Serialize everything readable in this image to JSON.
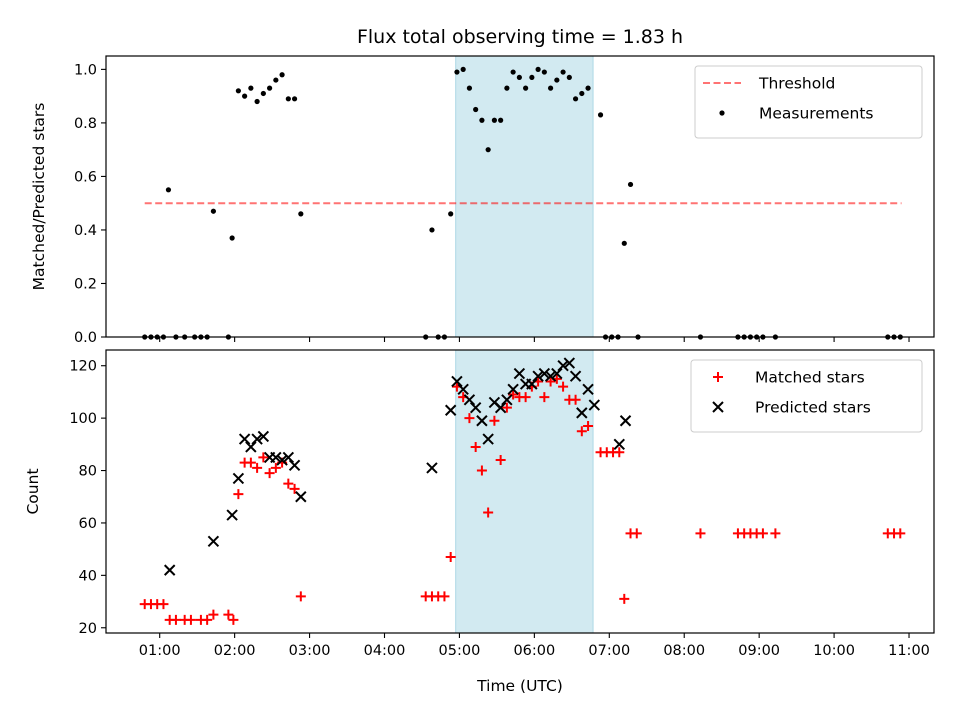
{
  "chart_data": [
    {
      "type": "scatter",
      "title": "Flux total observing time = 1.83 h",
      "xlabel": "",
      "ylabel": "Matched/Predicted stars",
      "xlim": [
        "00:17",
        "11:20"
      ],
      "ylim": [
        0,
        1.05
      ],
      "yticks": [
        "0.0",
        "0.2",
        "0.4",
        "0.6",
        "0.8",
        "1.0"
      ],
      "xticks": [
        "01:00",
        "02:00",
        "03:00",
        "04:00",
        "05:00",
        "06:00",
        "07:00",
        "08:00",
        "09:00",
        "10:00",
        "11:00"
      ],
      "xtick_labels_visible": false,
      "highlight_span": [
        "04:57",
        "06:47"
      ],
      "highlight_color": "#add8e6",
      "legend_position": "upper right",
      "threshold": {
        "name": "Threshold",
        "value": 0.5,
        "x_range": [
          "00:48",
          "10:54"
        ],
        "color": "#ff0000",
        "style": "dashed"
      },
      "series": [
        {
          "name": "Measurements",
          "marker": "dot",
          "color": "#000000",
          "points": [
            [
              "00:48",
              0
            ],
            [
              "00:53",
              0
            ],
            [
              "00:58",
              0
            ],
            [
              "01:03",
              0
            ],
            [
              "01:07",
              0.55
            ],
            [
              "01:13",
              0
            ],
            [
              "01:20",
              0
            ],
            [
              "01:28",
              0
            ],
            [
              "01:33",
              0
            ],
            [
              "01:38",
              0
            ],
            [
              "01:43",
              0.47
            ],
            [
              "01:55",
              0
            ],
            [
              "01:58",
              0.37
            ],
            [
              "02:03",
              0.92
            ],
            [
              "02:08",
              0.9
            ],
            [
              "02:13",
              0.93
            ],
            [
              "02:18",
              0.88
            ],
            [
              "02:23",
              0.91
            ],
            [
              "02:28",
              0.93
            ],
            [
              "02:33",
              0.96
            ],
            [
              "02:38",
              0.98
            ],
            [
              "02:43",
              0.89
            ],
            [
              "02:48",
              0.89
            ],
            [
              "02:53",
              0.46
            ],
            [
              "04:33",
              0
            ],
            [
              "04:38",
              0.4
            ],
            [
              "04:43",
              0
            ],
            [
              "04:48",
              0
            ],
            [
              "04:53",
              0.46
            ],
            [
              "04:58",
              0.99
            ],
            [
              "05:03",
              1.0
            ],
            [
              "05:08",
              0.93
            ],
            [
              "05:13",
              0.85
            ],
            [
              "05:18",
              0.81
            ],
            [
              "05:23",
              0.7
            ],
            [
              "05:28",
              0.81
            ],
            [
              "05:33",
              0.81
            ],
            [
              "05:38",
              0.93
            ],
            [
              "05:43",
              0.99
            ],
            [
              "05:48",
              0.97
            ],
            [
              "05:53",
              0.93
            ],
            [
              "05:58",
              0.97
            ],
            [
              "06:03",
              1.0
            ],
            [
              "06:08",
              0.99
            ],
            [
              "06:13",
              0.93
            ],
            [
              "06:18",
              0.96
            ],
            [
              "06:23",
              0.99
            ],
            [
              "06:28",
              0.97
            ],
            [
              "06:33",
              0.89
            ],
            [
              "06:38",
              0.91
            ],
            [
              "06:43",
              0.93
            ],
            [
              "06:53",
              0.83
            ],
            [
              "06:57",
              0
            ],
            [
              "07:02",
              0
            ],
            [
              "07:07",
              0
            ],
            [
              "07:12",
              0.35
            ],
            [
              "07:17",
              0.57
            ],
            [
              "07:23",
              0
            ],
            [
              "08:13",
              0
            ],
            [
              "08:43",
              0
            ],
            [
              "08:48",
              0
            ],
            [
              "08:53",
              0
            ],
            [
              "08:58",
              0
            ],
            [
              "09:03",
              0
            ],
            [
              "09:13",
              0
            ],
            [
              "10:43",
              0
            ],
            [
              "10:48",
              0
            ],
            [
              "10:53",
              0
            ]
          ]
        }
      ]
    },
    {
      "type": "scatter",
      "title": "",
      "xlabel": "Time (UTC)",
      "ylabel": "Count",
      "xlim": [
        "00:17",
        "11:20"
      ],
      "ylim": [
        18,
        126
      ],
      "yticks": [
        "20",
        "40",
        "60",
        "80",
        "100",
        "120"
      ],
      "xticks": [
        "01:00",
        "02:00",
        "03:00",
        "04:00",
        "05:00",
        "06:00",
        "07:00",
        "08:00",
        "09:00",
        "10:00",
        "11:00"
      ],
      "highlight_span": [
        "04:57",
        "06:47"
      ],
      "highlight_color": "#add8e6",
      "legend_position": "upper right",
      "series": [
        {
          "name": "Matched stars",
          "marker": "plus",
          "color": "#ff0000",
          "points": [
            [
              "00:48",
              29
            ],
            [
              "00:53",
              29
            ],
            [
              "00:58",
              29
            ],
            [
              "01:03",
              29
            ],
            [
              "01:08",
              23
            ],
            [
              "01:13",
              23
            ],
            [
              "01:20",
              23
            ],
            [
              "01:25",
              23
            ],
            [
              "01:33",
              23
            ],
            [
              "01:38",
              23
            ],
            [
              "01:43",
              25
            ],
            [
              "01:55",
              25
            ],
            [
              "01:59",
              23
            ],
            [
              "02:03",
              71
            ],
            [
              "02:08",
              83
            ],
            [
              "02:13",
              83
            ],
            [
              "02:18",
              81
            ],
            [
              "02:23",
              85
            ],
            [
              "02:28",
              79
            ],
            [
              "02:33",
              81
            ],
            [
              "02:38",
              83
            ],
            [
              "02:43",
              75
            ],
            [
              "02:48",
              73
            ],
            [
              "02:53",
              32
            ],
            [
              "04:33",
              32
            ],
            [
              "04:38",
              32
            ],
            [
              "04:43",
              32
            ],
            [
              "04:48",
              32
            ],
            [
              "04:53",
              47
            ],
            [
              "04:58",
              112
            ],
            [
              "05:03",
              108
            ],
            [
              "05:08",
              100
            ],
            [
              "05:13",
              89
            ],
            [
              "05:18",
              80
            ],
            [
              "05:23",
              64
            ],
            [
              "05:28",
              99
            ],
            [
              "05:33",
              84
            ],
            [
              "05:38",
              104
            ],
            [
              "05:43",
              109
            ],
            [
              "05:48",
              108
            ],
            [
              "05:53",
              108
            ],
            [
              "05:58",
              112
            ],
            [
              "06:03",
              114
            ],
            [
              "06:08",
              108
            ],
            [
              "06:13",
              114
            ],
            [
              "06:18",
              115
            ],
            [
              "06:23",
              112
            ],
            [
              "06:28",
              107
            ],
            [
              "06:33",
              107
            ],
            [
              "06:38",
              95
            ],
            [
              "06:43",
              97
            ],
            [
              "06:53",
              87
            ],
            [
              "06:58",
              87
            ],
            [
              "07:03",
              87
            ],
            [
              "07:08",
              87
            ],
            [
              "07:12",
              31
            ],
            [
              "07:17",
              56
            ],
            [
              "07:22",
              56
            ],
            [
              "08:13",
              56
            ],
            [
              "08:43",
              56
            ],
            [
              "08:48",
              56
            ],
            [
              "08:53",
              56
            ],
            [
              "08:58",
              56
            ],
            [
              "09:03",
              56
            ],
            [
              "09:13",
              56
            ],
            [
              "10:43",
              56
            ],
            [
              "10:48",
              56
            ],
            [
              "10:53",
              56
            ]
          ]
        },
        {
          "name": "Predicted stars",
          "marker": "x",
          "color": "#000000",
          "points": [
            [
              "01:08",
              42
            ],
            [
              "01:43",
              53
            ],
            [
              "01:58",
              63
            ],
            [
              "02:03",
              77
            ],
            [
              "02:08",
              92
            ],
            [
              "02:13",
              89
            ],
            [
              "02:18",
              92
            ],
            [
              "02:23",
              93
            ],
            [
              "02:28",
              85
            ],
            [
              "02:33",
              85
            ],
            [
              "02:38",
              84
            ],
            [
              "02:43",
              85
            ],
            [
              "02:48",
              82
            ],
            [
              "02:53",
              70
            ],
            [
              "04:38",
              81
            ],
            [
              "04:53",
              103
            ],
            [
              "04:58",
              114
            ],
            [
              "05:03",
              111
            ],
            [
              "05:08",
              107
            ],
            [
              "05:13",
              104
            ],
            [
              "05:18",
              99
            ],
            [
              "05:23",
              92
            ],
            [
              "05:28",
              106
            ],
            [
              "05:33",
              104
            ],
            [
              "05:38",
              107
            ],
            [
              "05:43",
              111
            ],
            [
              "05:48",
              117
            ],
            [
              "05:53",
              113
            ],
            [
              "05:58",
              113
            ],
            [
              "06:03",
              116
            ],
            [
              "06:08",
              117
            ],
            [
              "06:13",
              116
            ],
            [
              "06:18",
              117
            ],
            [
              "06:23",
              120
            ],
            [
              "06:28",
              121
            ],
            [
              "06:33",
              116
            ],
            [
              "06:38",
              102
            ],
            [
              "06:43",
              111
            ],
            [
              "06:48",
              105
            ],
            [
              "07:08",
              90
            ],
            [
              "07:13",
              99
            ]
          ]
        }
      ]
    }
  ]
}
